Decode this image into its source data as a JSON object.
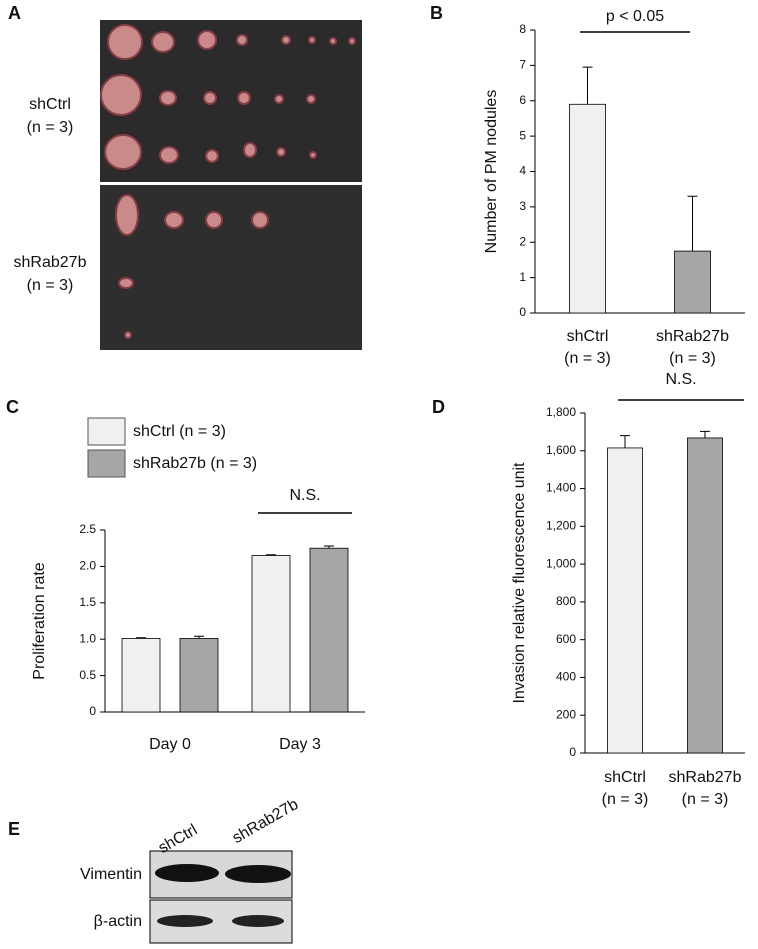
{
  "panels": {
    "letters": [
      "A",
      "B",
      "C",
      "D",
      "E"
    ],
    "photo": {
      "groups": [
        {
          "name": "shCtrl",
          "n": "(n = 3)"
        },
        {
          "name": "shRab27b",
          "n": "(n = 3)"
        }
      ]
    },
    "blot": {
      "columns": [
        "shCtrl",
        "shRab27b"
      ],
      "rows": [
        "Vimentin",
        "β-actin"
      ]
    }
  },
  "chart_data": [
    {
      "type": "bar",
      "annotation": "p < 0.05",
      "y_label": "Number of PM nodules",
      "categories": [
        "shCtrl",
        "shRab27b"
      ],
      "category_sublabels": [
        "(n = 3)",
        "(n = 3)"
      ],
      "values": [
        5.9,
        1.75
      ],
      "errors": [
        1.05,
        1.55
      ],
      "colors": [
        "#f0f0f0",
        "#a6a6a6"
      ],
      "ylim": [
        0,
        8
      ],
      "yticks": [
        0,
        1,
        2,
        3,
        4,
        5,
        6,
        7,
        8
      ]
    },
    {
      "type": "bar",
      "annotation": "N.S.",
      "y_label": "Proliferation rate",
      "categories": [
        "Day 0",
        "Day 3"
      ],
      "series": [
        {
          "name": "shCtrl (n = 3)",
          "color": "#f0f0f0",
          "values": [
            1.01,
            2.15
          ],
          "errors": [
            0.01,
            0.01
          ]
        },
        {
          "name": "shRab27b (n = 3)",
          "color": "#a6a6a6",
          "values": [
            1.01,
            2.25
          ],
          "errors": [
            0.03,
            0.03
          ]
        }
      ],
      "ylim": [
        0,
        2.5
      ],
      "yticks": [
        0,
        0.5,
        {
          "value": 1,
          "label": "1.0"
        },
        1.5,
        {
          "value": 2,
          "label": "2.0"
        },
        2.5
      ]
    },
    {
      "type": "bar",
      "annotation": "N.S.",
      "y_label": "Invasion relative fluorescence unit",
      "categories": [
        "shCtrl",
        "shRab27b"
      ],
      "category_sublabels": [
        "(n = 3)",
        "(n = 3)"
      ],
      "values": [
        1615,
        1668
      ],
      "errors": [
        65,
        35
      ],
      "colors": [
        "#f0f0f0",
        "#a6a6a6"
      ],
      "ylim": [
        0,
        1800
      ],
      "yticks": [
        0,
        200,
        400,
        600,
        800,
        {
          "value": 1000,
          "label": "1,000"
        },
        {
          "value": 1200,
          "label": "1,200"
        },
        {
          "value": 1400,
          "label": "1,400"
        },
        {
          "value": 1600,
          "label": "1,600"
        },
        {
          "value": 1800,
          "label": "1,800"
        }
      ]
    }
  ]
}
